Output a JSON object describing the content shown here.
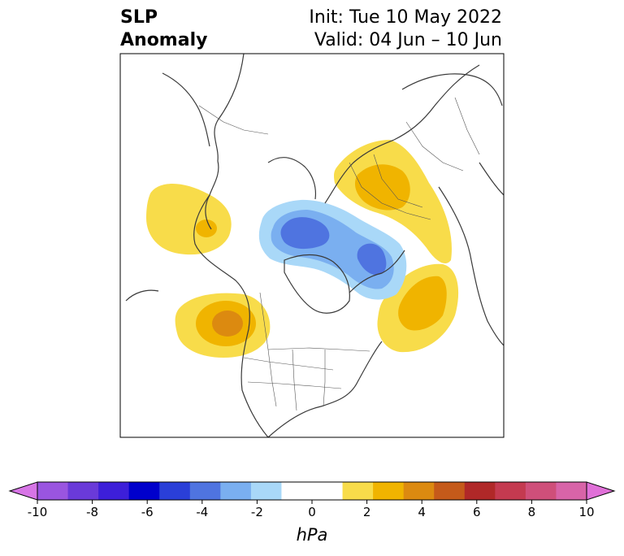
{
  "header": {
    "title_line1": "SLP",
    "title_line2": "Anomaly",
    "init_label": "Init: Tue 10 May 2022",
    "valid_label": "Valid: 04 Jun – 10 Jun"
  },
  "colorbar": {
    "unit": "hPa",
    "ticks": [
      "-10",
      "-8",
      "-6",
      "-4",
      "-2",
      "0",
      "2",
      "4",
      "6",
      "8",
      "10"
    ],
    "colors": [
      "#d775e6",
      "#9a55e0",
      "#6a3ad9",
      "#3d1fd9",
      "#0000cc",
      "#2a3fd8",
      "#4f74e0",
      "#7aaff0",
      "#a9d8f8",
      "#ffffff",
      "#ffffff",
      "#f8dc4a",
      "#f0b400",
      "#dc8a10",
      "#c55a1a",
      "#b02828",
      "#c43a50",
      "#cf4f7a",
      "#d864a8",
      "#e070d8"
    ]
  },
  "map": {
    "projection": "north-polar-stereographic",
    "anomalies": [
      {
        "sign": "positive",
        "region": "Gulf of Alaska / NE Pacific",
        "max_level": 3
      },
      {
        "sign": "positive",
        "region": "off Pacific Northwest coast",
        "max_level": 5
      },
      {
        "sign": "positive",
        "region": "Western Russia / Scandinavia",
        "max_level": 3
      },
      {
        "sign": "positive",
        "region": "North Atlantic",
        "max_level": 3
      },
      {
        "sign": "negative",
        "region": "Arctic Ocean",
        "min_level": -5
      }
    ]
  }
}
